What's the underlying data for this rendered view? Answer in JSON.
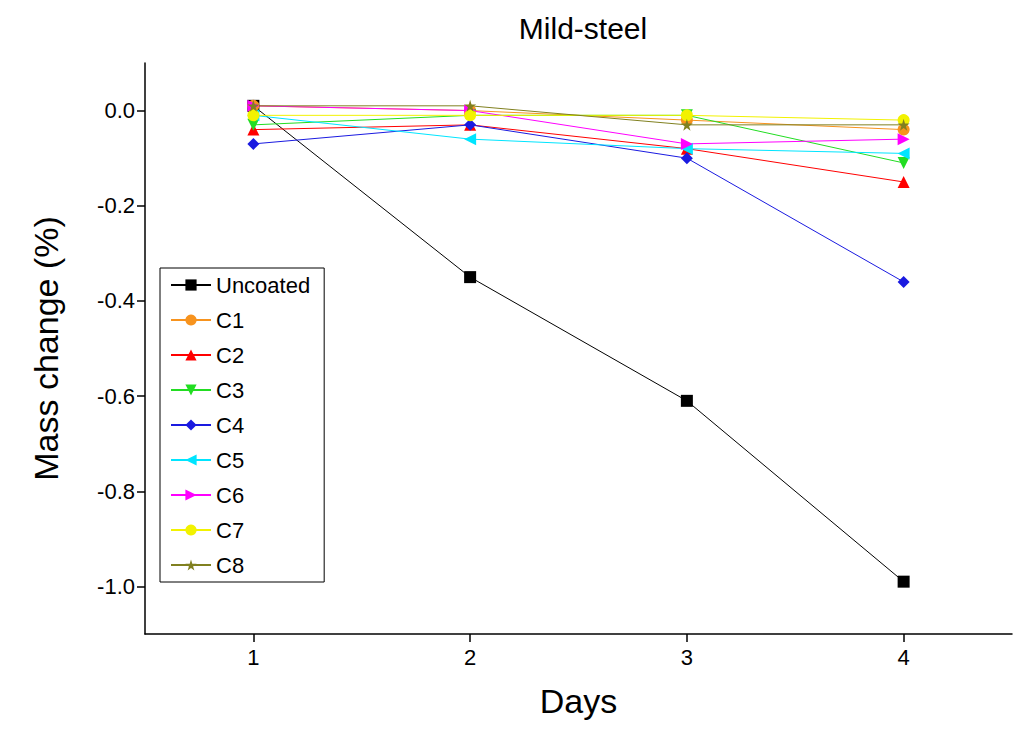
{
  "chart_data": {
    "type": "line",
    "title": "Mild-steel",
    "x_label": "Days",
    "y_label": "Mass change (%)",
    "xlim": [
      0.5,
      4.5
    ],
    "xticks": [
      1,
      2,
      3,
      4
    ],
    "ylim": [
      -1.1,
      0.1
    ],
    "yticks": [
      {
        "value": -1.0,
        "label": "-1.0"
      },
      -0.8,
      -0.6,
      -0.4,
      -0.2,
      {
        "value": 0,
        "label": "0.0"
      }
    ],
    "grid": false,
    "legend": "lower left",
    "x": [
      1,
      2,
      3,
      4
    ],
    "series": [
      {
        "name": "Uncoated",
        "color": "#000000",
        "marker": "square",
        "values": [
          0.01,
          -0.35,
          -0.61,
          -0.99
        ]
      },
      {
        "name": "C1",
        "color": "#f7931e",
        "marker": "circle",
        "values": [
          0.01,
          0.0,
          -0.02,
          -0.04
        ]
      },
      {
        "name": "C2",
        "color": "#ff0000",
        "marker": "triangle_up",
        "values": [
          -0.04,
          -0.03,
          -0.08,
          -0.15
        ]
      },
      {
        "name": "C3",
        "color": "#22dd22",
        "marker": "triangle_down",
        "values": [
          -0.03,
          -0.01,
          -0.01,
          -0.11
        ]
      },
      {
        "name": "C4",
        "color": "#1a1ae0",
        "marker": "diamond",
        "values": [
          -0.07,
          -0.03,
          -0.1,
          -0.36
        ]
      },
      {
        "name": "C5",
        "color": "#00e5ff",
        "marker": "triangle_left",
        "values": [
          -0.01,
          -0.06,
          -0.08,
          -0.09
        ]
      },
      {
        "name": "C6",
        "color": "#ff00ff",
        "marker": "triangle_right",
        "values": [
          0.01,
          0.0,
          -0.07,
          -0.06
        ]
      },
      {
        "name": "C7",
        "color": "#f2f200",
        "marker": "circle",
        "values": [
          -0.01,
          -0.01,
          -0.01,
          -0.02
        ]
      },
      {
        "name": "C8",
        "color": "#808020",
        "marker": "star",
        "values": [
          0.01,
          0.01,
          -0.03,
          -0.03
        ]
      }
    ]
  }
}
